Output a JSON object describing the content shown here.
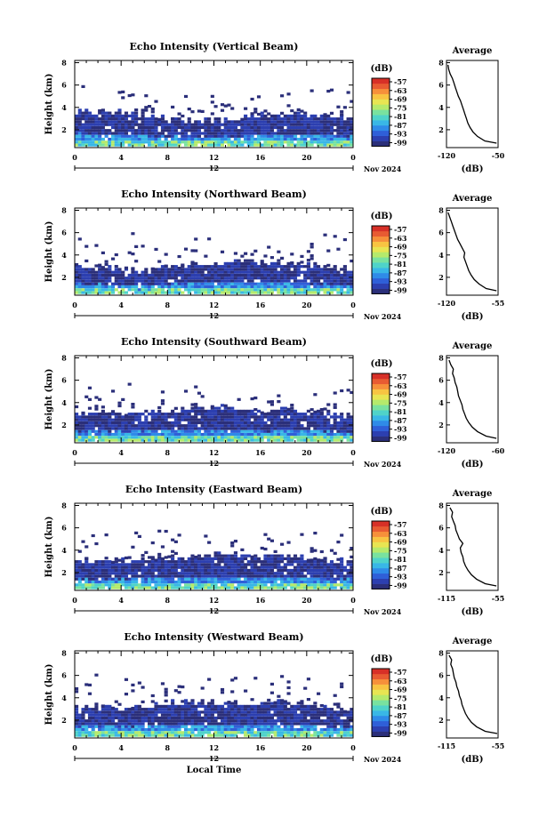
{
  "figure": {
    "xlabel": "Local Time",
    "date_label": "Nov 2024",
    "day_label": "12",
    "colorbar_unit": "(dB)",
    "colorbar_ticks": [
      "-57",
      "-63",
      "-69",
      "-75",
      "-81",
      "-87",
      "-93",
      "-99"
    ],
    "colorbar_colors": [
      "#2b2f7a",
      "#2c3fb0",
      "#2f5fd8",
      "#2f8be8",
      "#39b7e6",
      "#4fd3c9",
      "#79e29f",
      "#b5ea6c",
      "#e8e552",
      "#f8c442",
      "#f6903a",
      "#e85b32",
      "#d73027"
    ],
    "average_title": "Average",
    "average_xunit": "(dB)"
  },
  "chart_data": [
    {
      "type": "heatmap",
      "title": "Echo Intensity (Vertical Beam)",
      "xlabel": "",
      "ylabel": "Height (km)",
      "x_ticks": [
        "0",
        "4",
        "8",
        "12",
        "16",
        "20",
        "0"
      ],
      "y_ticks": [
        "2",
        "4",
        "6",
        "8"
      ],
      "xlim": [
        0,
        24
      ],
      "ylim": [
        0.4,
        8.2
      ],
      "top_height_km": [
        3.6,
        3.4,
        3.5,
        3.4,
        3.3,
        3.2,
        3.0,
        2.9,
        2.8,
        2.7,
        2.6,
        2.7,
        2.8,
        2.9,
        3.0,
        3.1,
        3.2,
        3.3,
        3.4,
        3.3,
        3.2,
        3.1,
        3.0,
        2.9
      ],
      "colorbar": {
        "label": "(dB)",
        "min": -99,
        "max": -57
      },
      "average_profile": {
        "xlim": [
          -120,
          -50
        ],
        "x_ticks": [
          "-120",
          "-50"
        ],
        "y_ticks": [
          "2",
          "4",
          "6",
          "8"
        ],
        "height_km": [
          0.8,
          1.0,
          1.4,
          1.8,
          2.2,
          2.6,
          3.0,
          3.4,
          3.8,
          4.2,
          4.6,
          5.0,
          5.4,
          5.8,
          6.2,
          6.6,
          7.0,
          7.4,
          7.8
        ],
        "db": [
          -52,
          -68,
          -78,
          -84,
          -88,
          -91,
          -93,
          -95,
          -97,
          -99,
          -101,
          -104,
          -106,
          -108,
          -110,
          -112,
          -115,
          -117,
          -118
        ]
      }
    },
    {
      "type": "heatmap",
      "title": "Echo Intensity (Northward Beam)",
      "xlabel": "",
      "ylabel": "Height (km)",
      "x_ticks": [
        "0",
        "4",
        "8",
        "12",
        "16",
        "20",
        "0"
      ],
      "y_ticks": [
        "2",
        "4",
        "6",
        "8"
      ],
      "xlim": [
        0,
        24
      ],
      "ylim": [
        0.4,
        8.2
      ],
      "top_height_km": [
        2.8,
        2.7,
        2.8,
        2.6,
        2.5,
        2.4,
        2.6,
        2.8,
        2.9,
        3.0,
        3.0,
        3.1,
        3.2,
        3.3,
        3.4,
        3.3,
        3.2,
        3.2,
        3.1,
        3.0,
        3.0,
        2.9,
        2.8,
        2.7
      ],
      "colorbar": {
        "label": "(dB)",
        "min": -99,
        "max": -57
      },
      "average_profile": {
        "xlim": [
          -120,
          -55
        ],
        "x_ticks": [
          "-120",
          "-55"
        ],
        "y_ticks": [
          "2",
          "4",
          "6",
          "8"
        ],
        "height_km": [
          0.8,
          1.0,
          1.4,
          1.8,
          2.2,
          2.6,
          3.0,
          3.4,
          3.8,
          4.2,
          4.6,
          5.0,
          5.4,
          5.8,
          6.2,
          6.6,
          7.0,
          7.4,
          7.8
        ],
        "db": [
          -57,
          -70,
          -79,
          -85,
          -89,
          -92,
          -94,
          -96,
          -98,
          -97,
          -100,
          -103,
          -106,
          -108,
          -110,
          -112,
          -114,
          -116,
          -118
        ]
      }
    },
    {
      "type": "heatmap",
      "title": "Echo Intensity (Southward Beam)",
      "xlabel": "",
      "ylabel": "Height (km)",
      "x_ticks": [
        "0",
        "4",
        "8",
        "12",
        "16",
        "20",
        "0"
      ],
      "y_ticks": [
        "2",
        "4",
        "6",
        "8"
      ],
      "xlim": [
        0,
        24
      ],
      "ylim": [
        0.4,
        8.2
      ],
      "top_height_km": [
        2.8,
        2.9,
        3.0,
        3.0,
        2.9,
        3.0,
        3.1,
        3.2,
        3.2,
        3.3,
        3.3,
        3.4,
        3.4,
        3.3,
        3.3,
        3.2,
        3.1,
        3.2,
        3.3,
        3.2,
        3.1,
        3.0,
        2.9,
        2.8
      ],
      "colorbar": {
        "label": "(dB)",
        "min": -99,
        "max": -57
      },
      "average_profile": {
        "xlim": [
          -120,
          -60
        ],
        "x_ticks": [
          "-120",
          "-60"
        ],
        "y_ticks": [
          "2",
          "4",
          "6",
          "8"
        ],
        "height_km": [
          0.8,
          1.0,
          1.4,
          1.8,
          2.2,
          2.6,
          3.0,
          3.4,
          3.8,
          4.2,
          4.6,
          5.0,
          5.4,
          5.8,
          6.2,
          6.6,
          7.0,
          7.4,
          7.8
        ],
        "db": [
          -62,
          -74,
          -84,
          -90,
          -94,
          -97,
          -99,
          -101,
          -102,
          -104,
          -106,
          -107,
          -108,
          -110,
          -111,
          -113,
          -112,
          -115,
          -117
        ]
      }
    },
    {
      "type": "heatmap",
      "title": "Echo Intensity (Eastward Beam)",
      "xlabel": "",
      "ylabel": "Height (km)",
      "x_ticks": [
        "0",
        "4",
        "8",
        "12",
        "16",
        "20",
        "0"
      ],
      "y_ticks": [
        "2",
        "4",
        "6",
        "8"
      ],
      "xlim": [
        0,
        24
      ],
      "ylim": [
        0.4,
        8.2
      ],
      "top_height_km": [
        3.0,
        2.9,
        3.0,
        2.9,
        2.9,
        3.0,
        3.1,
        3.2,
        3.3,
        3.3,
        3.4,
        3.5,
        3.5,
        3.4,
        3.4,
        3.3,
        3.4,
        3.5,
        3.3,
        3.2,
        3.1,
        3.0,
        2.9,
        2.8
      ],
      "colorbar": {
        "label": "(dB)",
        "min": -99,
        "max": -57
      },
      "average_profile": {
        "xlim": [
          -115,
          -55
        ],
        "x_ticks": [
          "-115",
          "-55"
        ],
        "y_ticks": [
          "2",
          "4",
          "6",
          "8"
        ],
        "height_km": [
          0.8,
          1.0,
          1.4,
          1.8,
          2.2,
          2.6,
          3.0,
          3.4,
          3.8,
          4.2,
          4.6,
          5.0,
          5.4,
          5.8,
          6.2,
          6.6,
          7.0,
          7.4,
          7.8
        ],
        "db": [
          -57,
          -70,
          -80,
          -86,
          -90,
          -93,
          -95,
          -96,
          -98,
          -99,
          -96,
          -100,
          -102,
          -104,
          -105,
          -107,
          -109,
          -108,
          -111
        ]
      }
    },
    {
      "type": "heatmap",
      "title": "Echo Intensity (Westward Beam)",
      "xlabel": "Local Time",
      "ylabel": "Height (km)",
      "x_ticks": [
        "0",
        "4",
        "8",
        "12",
        "16",
        "20",
        "0"
      ],
      "y_ticks": [
        "2",
        "4",
        "6",
        "8"
      ],
      "xlim": [
        0,
        24
      ],
      "ylim": [
        0.4,
        8.2
      ],
      "top_height_km": [
        3.0,
        3.0,
        3.1,
        3.0,
        2.9,
        3.1,
        3.2,
        3.3,
        3.4,
        3.4,
        3.5,
        3.5,
        3.4,
        3.4,
        3.3,
        3.3,
        3.4,
        3.5,
        3.4,
        3.3,
        3.1,
        3.0,
        2.9,
        2.8
      ],
      "colorbar": {
        "label": "(dB)",
        "min": -99,
        "max": -57
      },
      "average_profile": {
        "xlim": [
          -115,
          -55
        ],
        "x_ticks": [
          "-115",
          "-55"
        ],
        "y_ticks": [
          "2",
          "4",
          "6",
          "8"
        ],
        "height_km": [
          0.8,
          1.0,
          1.4,
          1.8,
          2.2,
          2.6,
          3.0,
          3.4,
          3.8,
          4.2,
          4.6,
          5.0,
          5.4,
          5.8,
          6.2,
          6.6,
          7.0,
          7.4,
          7.8
        ],
        "db": [
          -56,
          -70,
          -80,
          -86,
          -90,
          -93,
          -95,
          -97,
          -98,
          -100,
          -101,
          -103,
          -104,
          -106,
          -107,
          -108,
          -110,
          -109,
          -112
        ]
      }
    }
  ]
}
